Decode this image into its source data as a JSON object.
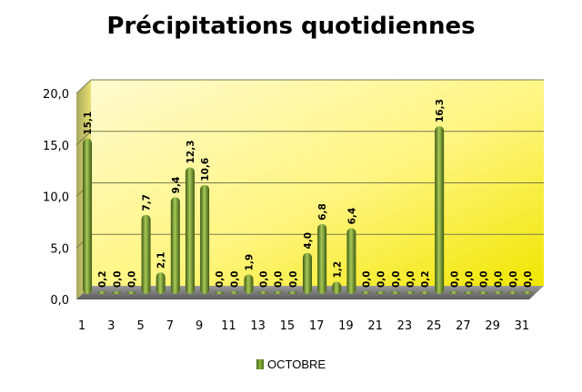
{
  "chart_data": {
    "type": "bar",
    "title": "Précipitations quotidiennes",
    "xlabel": "",
    "ylabel": "",
    "ylim": [
      0,
      20
    ],
    "yticks": [
      "0,0",
      "5,0",
      "10,0",
      "15,0",
      "20,0"
    ],
    "x_tick_labels": [
      "1",
      "3",
      "5",
      "7",
      "9",
      "11",
      "13",
      "15",
      "17",
      "19",
      "21",
      "23",
      "25",
      "27",
      "29",
      "31"
    ],
    "categories": [
      "1",
      "2",
      "3",
      "4",
      "5",
      "6",
      "7",
      "8",
      "9",
      "10",
      "11",
      "12",
      "13",
      "14",
      "15",
      "16",
      "17",
      "18",
      "19",
      "20",
      "21",
      "22",
      "23",
      "24",
      "25",
      "26",
      "27",
      "28",
      "29",
      "30",
      "31"
    ],
    "values": [
      15.1,
      0.2,
      0.0,
      0.0,
      7.7,
      2.1,
      9.4,
      12.3,
      10.6,
      0.0,
      0.0,
      1.9,
      0.0,
      0.0,
      0.0,
      4.0,
      6.8,
      1.2,
      6.4,
      0.0,
      0.0,
      0.0,
      0.0,
      0.2,
      16.3,
      0.0,
      0.0,
      0.0,
      0.0,
      0.0,
      0.0
    ],
    "data_labels": [
      "15,1",
      "0,2",
      "0,0",
      "0,0",
      "7,7",
      "2,1",
      "9,4",
      "12,3",
      "10,6",
      "0,0",
      "0,0",
      "1,9",
      "0,0",
      "0,0",
      "0,0",
      "4,0",
      "6,8",
      "1,2",
      "6,4",
      "0,0",
      "0,0",
      "0,0",
      "0,0",
      "0,2",
      "16,3",
      "0,0",
      "0,0",
      "0,0",
      "0,0",
      "0,0",
      "0,0"
    ],
    "series": [
      {
        "name": "OCTOBRE"
      }
    ],
    "legend_position": "bottom",
    "grid": true,
    "colors": {
      "bar": "#6b8e23",
      "bar_dark": "#3e5a12",
      "bar_light": "#a7c957",
      "wall_top": "#fffbd0",
      "wall_bottom": "#f2ea00",
      "floor": "#808080"
    }
  }
}
